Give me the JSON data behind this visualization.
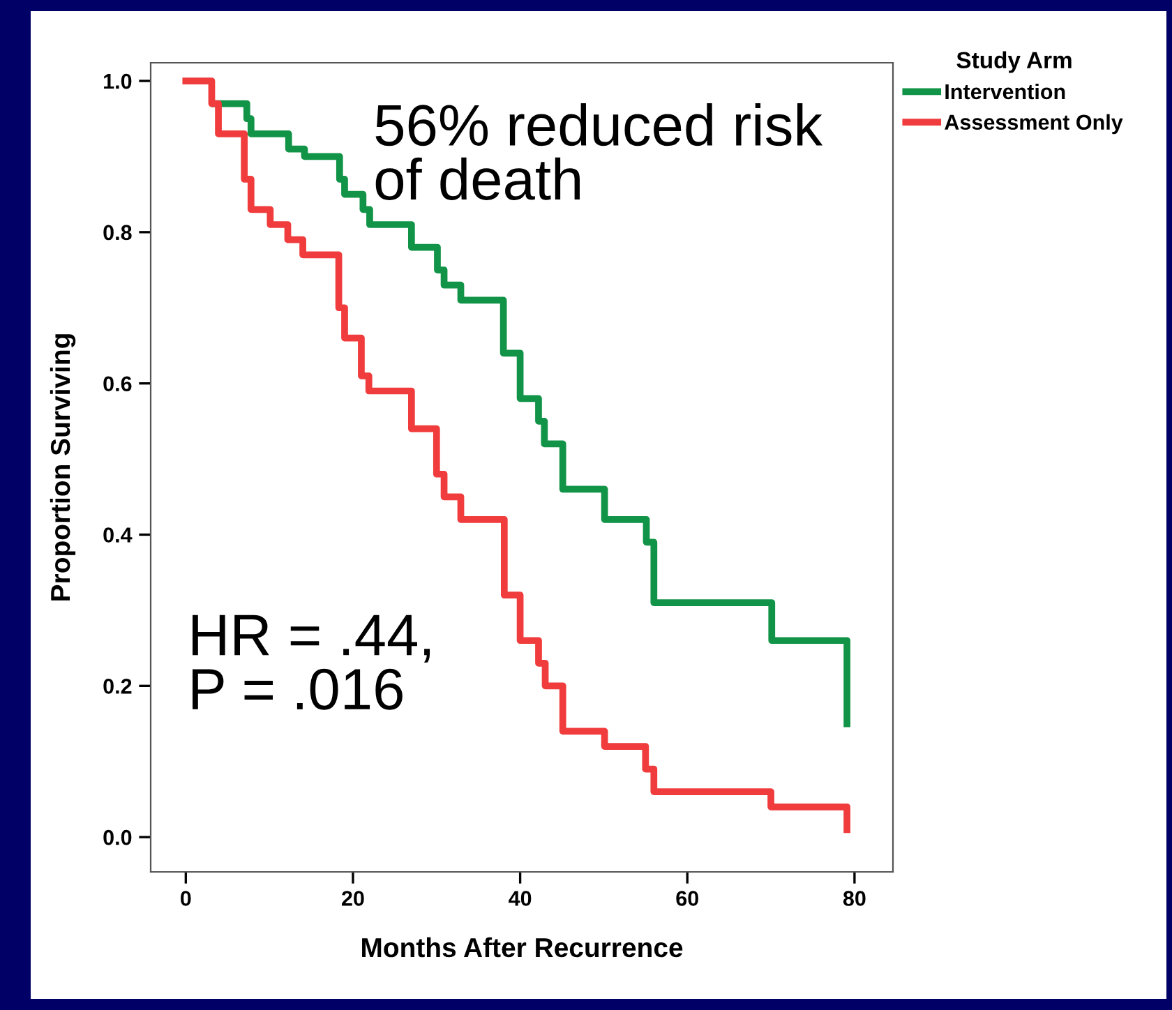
{
  "chart_data": {
    "type": "step",
    "xlabel": "Months After Recurrence",
    "ylabel": "Proportion Surviving",
    "legend_title": "Study Arm",
    "legend": "top right",
    "series": [
      {
        "name": "Intervention",
        "color": "#119447",
        "x": [
          3.4,
          7.3,
          7.8,
          9.8,
          12.3,
          14.2,
          18.4,
          19,
          21.2,
          22,
          27,
          30.1,
          30.9,
          32.9,
          38,
          40,
          42.2,
          42.9,
          45.1,
          50.1,
          55.1,
          56,
          70.1,
          79.1
        ],
        "values": [
          0.97,
          0.95,
          0.93,
          0.93,
          0.91,
          0.9,
          0.87,
          0.85,
          0.83,
          0.81,
          0.78,
          0.75,
          0.73,
          0.71,
          0.64,
          0.58,
          0.55,
          0.52,
          0.46,
          0.42,
          0.39,
          0.31,
          0.26,
          0.15
        ]
      },
      {
        "name": "Assessment Only",
        "color": "#f03c3c",
        "x": [
          0,
          3.1,
          3.9,
          7,
          7.8,
          10.1,
          12.2,
          14,
          18.3,
          19,
          21,
          21.9,
          27,
          30,
          30.9,
          32.9,
          38.1,
          40,
          42.2,
          43,
          45.1,
          50.1,
          55,
          56,
          70,
          79.1
        ],
        "values": [
          1.0,
          0.97,
          0.93,
          0.87,
          0.83,
          0.81,
          0.79,
          0.77,
          0.7,
          0.66,
          0.61,
          0.59,
          0.54,
          0.48,
          0.45,
          0.42,
          0.32,
          0.26,
          0.23,
          0.2,
          0.14,
          0.12,
          0.09,
          0.06,
          0.04,
          0.01
        ]
      }
    ],
    "xlim": [
      -4.2,
      84.6
    ],
    "ylim": [
      -0.046,
      1.024
    ],
    "xticks": [
      0,
      20,
      40,
      60,
      80
    ],
    "yticks": [
      {
        "value": 0,
        "label": "0.0"
      },
      {
        "value": 0.2,
        "label": "0.2"
      },
      {
        "value": 0.4,
        "label": "0.4"
      },
      {
        "value": 0.6,
        "label": "0.6"
      },
      {
        "value": 0.8,
        "label": "0.8"
      },
      {
        "value": 1.0,
        "label": "1.0"
      }
    ],
    "grid": false,
    "annotations": [
      "56% reduced risk\nof death",
      "HR = .44,\nP = .016"
    ]
  }
}
